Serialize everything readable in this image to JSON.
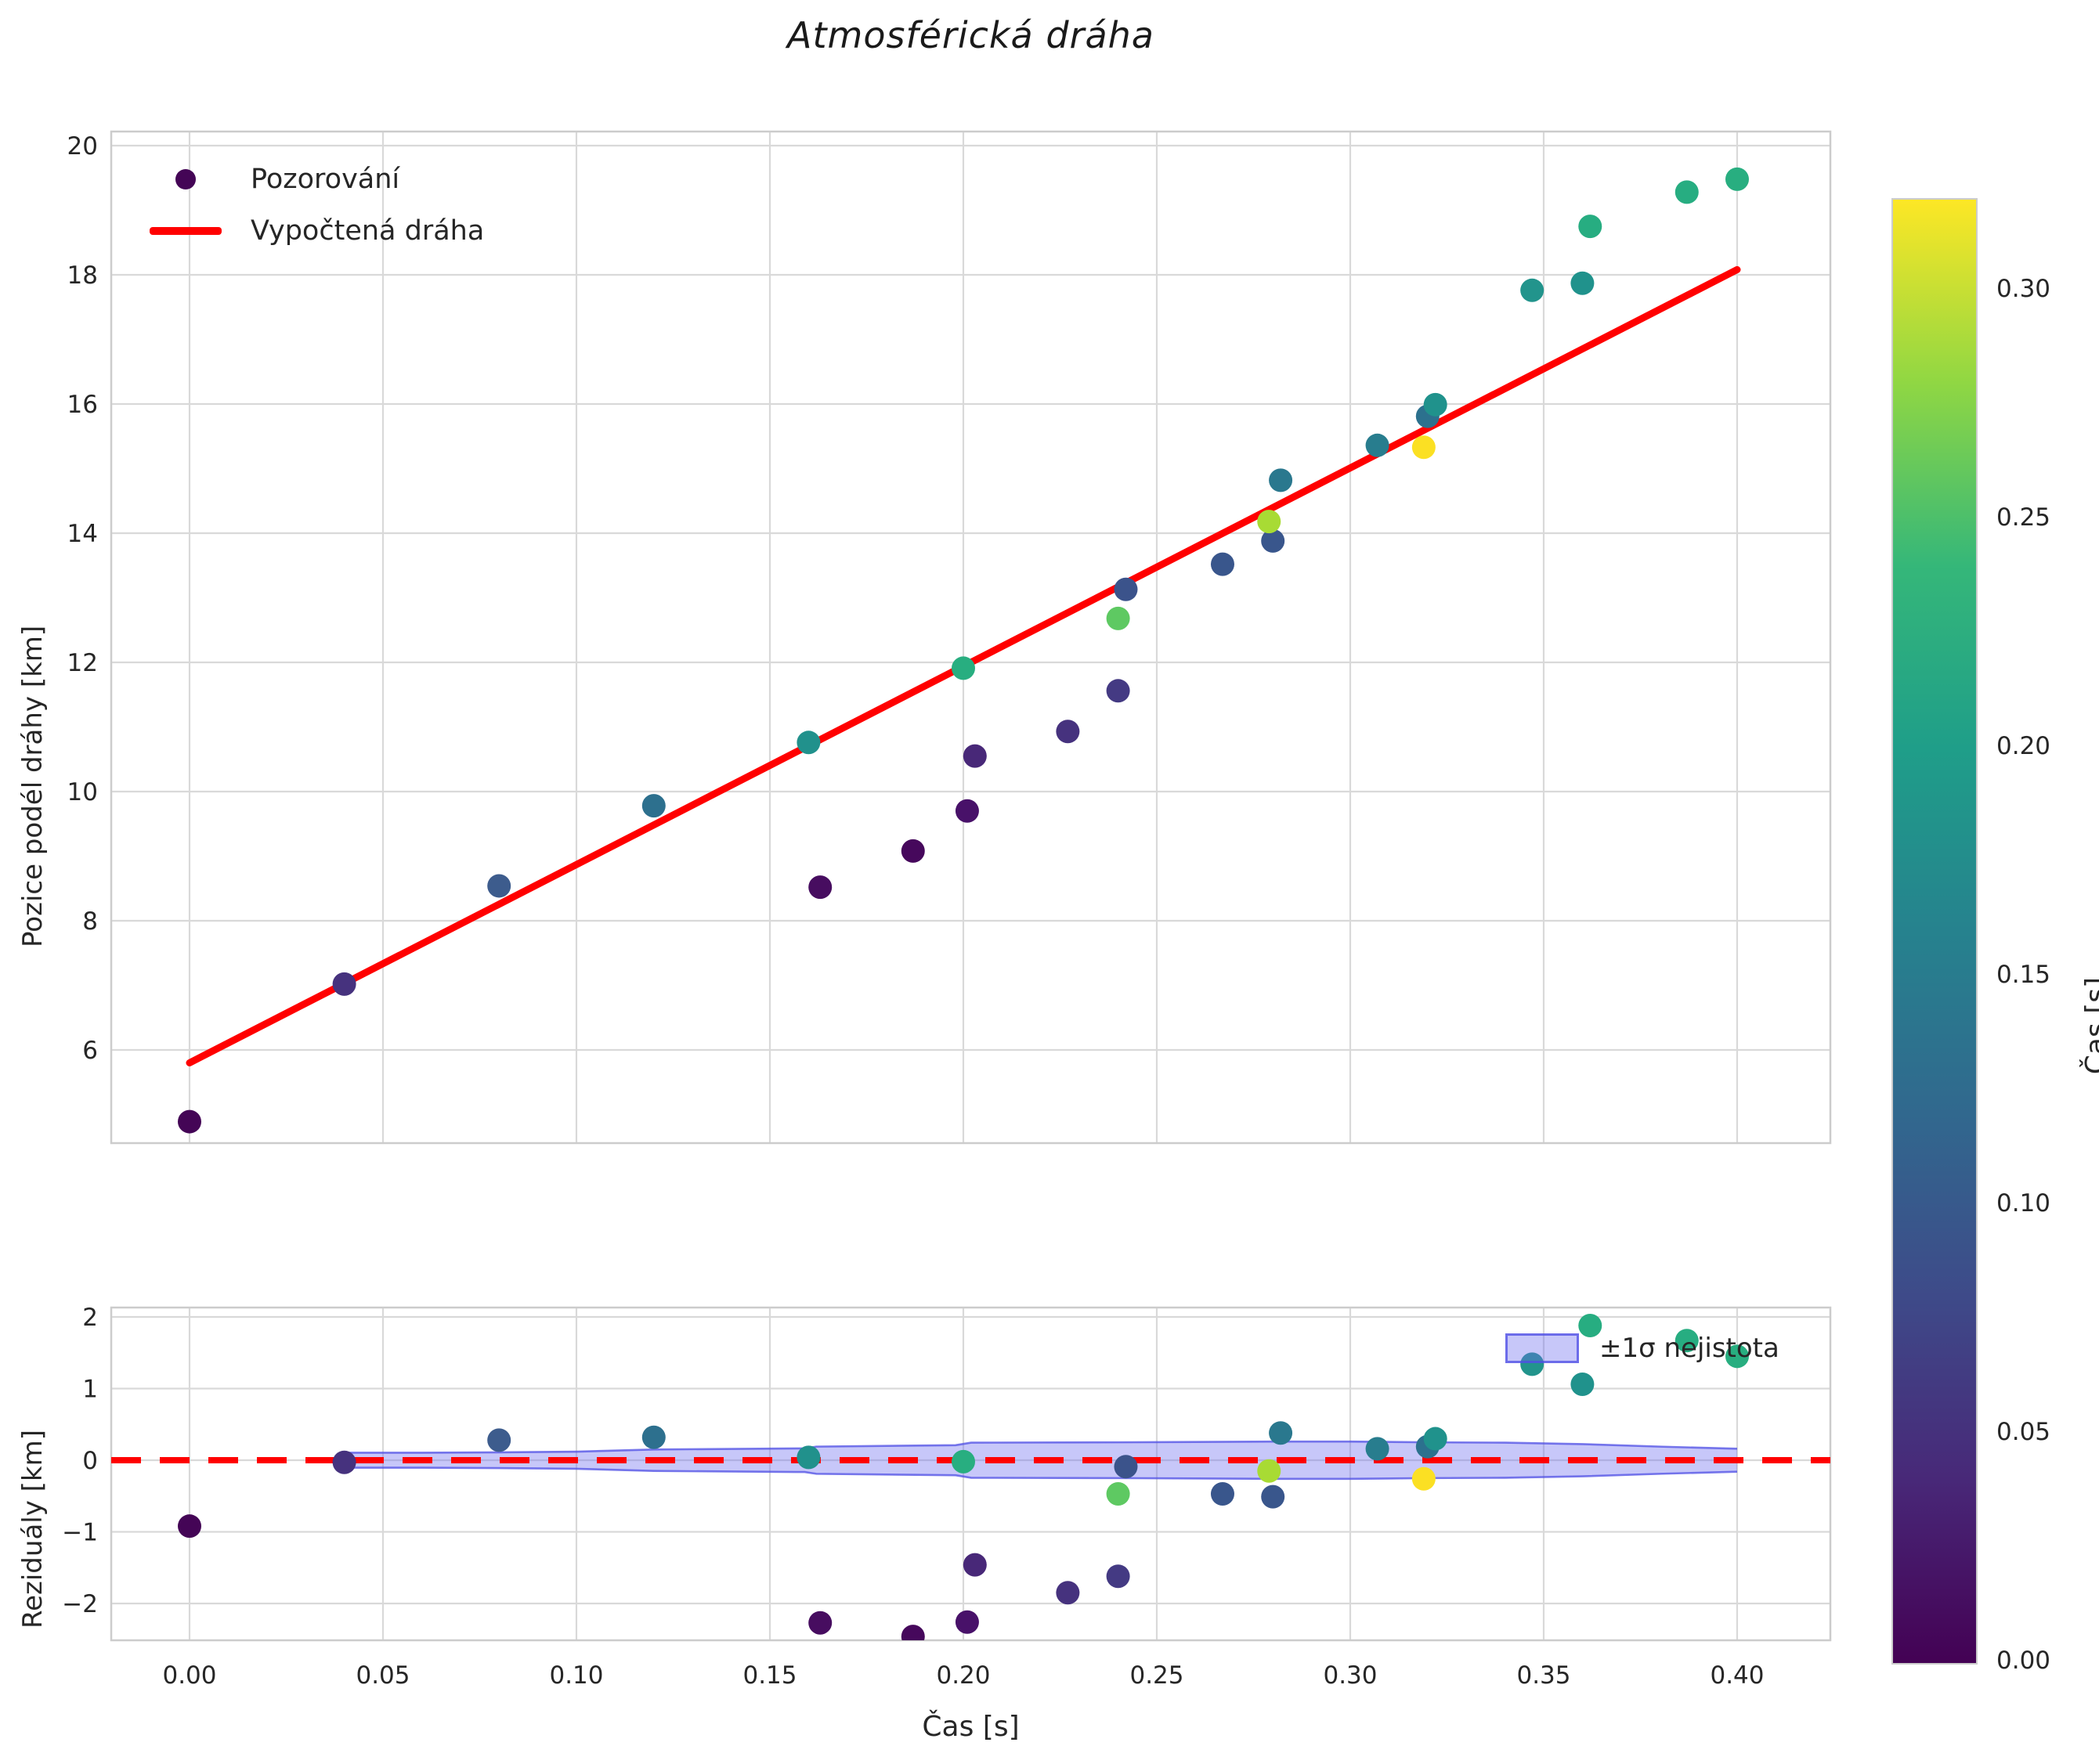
{
  "title": "Atmosférická dráha",
  "chart_data": {
    "type": "scatter",
    "title": "Atmosférická dráha",
    "panels": [
      {
        "name": "trajectory",
        "ylabel": "Pozice podél dráhy [km]",
        "xlim": [
          -0.0202,
          0.4241
        ],
        "ylim": [
          4.56,
          20.22
        ],
        "grid": true,
        "yticks": [
          {
            "v": 6,
            "label": "6"
          },
          {
            "v": 8,
            "label": "8"
          },
          {
            "v": 10,
            "label": "10"
          },
          {
            "v": 12,
            "label": "12"
          },
          {
            "v": 14,
            "label": "14"
          },
          {
            "v": 16,
            "label": "16"
          },
          {
            "v": 18,
            "label": "18"
          },
          {
            "v": 20,
            "label": "20"
          }
        ],
        "legend": [
          {
            "label": "Pozorování",
            "marker": "dot",
            "color": "#440556"
          },
          {
            "label": "Vypočtená dráha",
            "marker": "line",
            "color": "#ff0000"
          }
        ],
        "fit_line": {
          "label": "Vypočtená dráha",
          "color": "#ff0000",
          "x": [
            0.0,
            0.4
          ],
          "y": [
            5.8,
            18.08
          ],
          "slope_km_s": 30.7,
          "intercept_km": 5.8
        },
        "points": [
          {
            "t": 0.0,
            "y": 4.89,
            "residual": -0.92,
            "color": "#440556"
          },
          {
            "t": 0.04,
            "y": 7.02,
            "residual": -0.03,
            "color": "#46327e"
          },
          {
            "t": 0.08,
            "y": 8.54,
            "residual": 0.28,
            "color": "#3d5c8d"
          },
          {
            "t": 0.12,
            "y": 9.78,
            "residual": 0.32,
            "color": "#2d708e"
          },
          {
            "t": 0.16,
            "y": 10.76,
            "residual": 0.04,
            "color": "#21918c"
          },
          {
            "t": 0.163,
            "y": 8.52,
            "residual": -2.27,
            "color": "#470d60"
          },
          {
            "t": 0.187,
            "y": 9.08,
            "residual": -2.46,
            "color": "#46085c"
          },
          {
            "t": 0.201,
            "y": 9.7,
            "residual": -2.26,
            "color": "#481169"
          },
          {
            "t": 0.203,
            "y": 10.55,
            "residual": -1.46,
            "color": "#482878"
          },
          {
            "t": 0.2,
            "y": 11.91,
            "residual": -0.02,
            "color": "#28ae80"
          },
          {
            "t": 0.227,
            "y": 10.93,
            "residual": -1.85,
            "color": "#46327e"
          },
          {
            "t": 0.24,
            "y": 11.56,
            "residual": -1.62,
            "color": "#443a83"
          },
          {
            "t": 0.24,
            "y": 12.68,
            "residual": -0.47,
            "color": "#5ec962"
          },
          {
            "t": 0.242,
            "y": 13.13,
            "residual": -0.09,
            "color": "#3b538b"
          },
          {
            "t": 0.267,
            "y": 13.52,
            "residual": -0.47,
            "color": "#39568c"
          },
          {
            "t": 0.28,
            "y": 13.88,
            "residual": -0.51,
            "color": "#39568c"
          },
          {
            "t": 0.279,
            "y": 14.18,
            "residual": -0.15,
            "color": "#a8db34"
          },
          {
            "t": 0.282,
            "y": 14.82,
            "residual": 0.38,
            "color": "#2a788e"
          },
          {
            "t": 0.307,
            "y": 15.36,
            "residual": 0.16,
            "color": "#287d8e"
          },
          {
            "t": 0.319,
            "y": 15.33,
            "residual": -0.26,
            "color": "#fbe023"
          },
          {
            "t": 0.32,
            "y": 15.81,
            "residual": 0.19,
            "color": "#2c718e"
          },
          {
            "t": 0.322,
            "y": 15.99,
            "residual": 0.3,
            "color": "#20928c"
          },
          {
            "t": 0.347,
            "y": 17.76,
            "residual": 1.34,
            "color": "#22948c"
          },
          {
            "t": 0.36,
            "y": 17.87,
            "residual": 1.06,
            "color": "#20928c"
          },
          {
            "t": 0.362,
            "y": 18.75,
            "residual": 1.88,
            "color": "#27ad81"
          },
          {
            "t": 0.387,
            "y": 19.28,
            "residual": 1.67,
            "color": "#27ad81"
          },
          {
            "t": 0.4,
            "y": 19.48,
            "residual": 1.45,
            "color": "#28ae80"
          }
        ]
      },
      {
        "name": "residuals",
        "ylabel": "Reziduály [km]",
        "xlabel": "Čas [s]",
        "xlim": [
          -0.0202,
          0.4241
        ],
        "ylim": [
          -2.51,
          2.13
        ],
        "grid": true,
        "yticks": [
          {
            "v": -2,
            "label": "−2"
          },
          {
            "v": -1,
            "label": "−1"
          },
          {
            "v": 0,
            "label": "0"
          },
          {
            "v": 1,
            "label": "1"
          },
          {
            "v": 2,
            "label": "2"
          }
        ],
        "xticks": [
          {
            "v": 0.0,
            "label": "0.00"
          },
          {
            "v": 0.05,
            "label": "0.05"
          },
          {
            "v": 0.1,
            "label": "0.10"
          },
          {
            "v": 0.15,
            "label": "0.15"
          },
          {
            "v": 0.2,
            "label": "0.20"
          },
          {
            "v": 0.25,
            "label": "0.25"
          },
          {
            "v": 0.3,
            "label": "0.30"
          },
          {
            "v": 0.35,
            "label": "0.35"
          },
          {
            "v": 0.4,
            "label": "0.40"
          }
        ],
        "zero_line": {
          "color": "#ff0000",
          "style": "dashed",
          "value": 0
        },
        "band": {
          "label": "±1σ nejistota",
          "fill": "rgba(108,108,240,0.38)",
          "edge": "rgba(78,78,228,0.75)",
          "t": [
            0.04,
            0.06,
            0.08,
            0.1,
            0.12,
            0.159,
            0.162,
            0.198,
            0.202,
            0.24,
            0.26,
            0.28,
            0.3,
            0.32,
            0.34,
            0.36,
            0.38,
            0.4
          ],
          "hw": [
            0.105,
            0.105,
            0.11,
            0.12,
            0.15,
            0.165,
            0.19,
            0.21,
            0.245,
            0.25,
            0.255,
            0.26,
            0.26,
            0.25,
            0.245,
            0.225,
            0.19,
            0.16
          ]
        }
      }
    ],
    "colorbar": {
      "label": "Čas [s]",
      "vmin": 0.0,
      "vmax": 0.32,
      "ticks": [
        {
          "v": 0.0,
          "label": "0.00"
        },
        {
          "v": 0.05,
          "label": "0.05"
        },
        {
          "v": 0.1,
          "label": "0.10"
        },
        {
          "v": 0.15,
          "label": "0.15"
        },
        {
          "v": 0.2,
          "label": "0.20"
        },
        {
          "v": 0.25,
          "label": "0.25"
        },
        {
          "v": 0.3,
          "label": "0.30"
        }
      ],
      "gradient_stops": [
        "#440154",
        "#482878",
        "#3e4a89",
        "#31688e",
        "#26828e",
        "#1f9e89",
        "#35b779",
        "#90d743",
        "#fde725"
      ]
    },
    "style": {
      "grid_color": "#d9d9d9",
      "spine_color": "#cccccc",
      "text_color": "#262626",
      "point_radius": 15
    }
  }
}
